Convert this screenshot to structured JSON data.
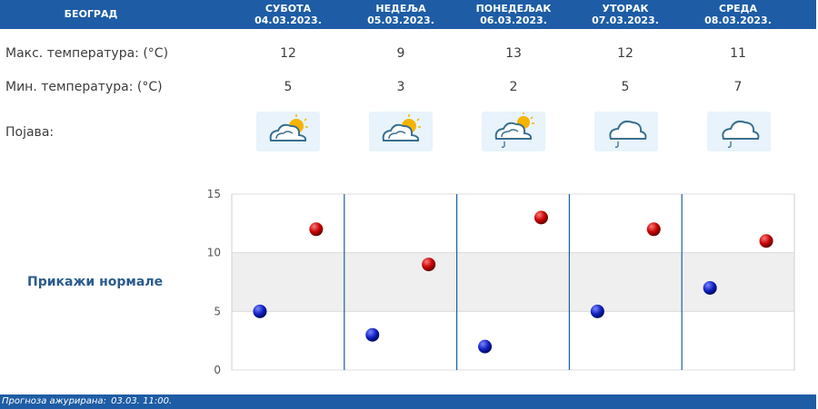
{
  "header": {
    "city": "БЕОГРАД"
  },
  "days": [
    {
      "name": "СУБОТА",
      "date": "04.03.2023.",
      "max": "12",
      "min": "5",
      "icon": "sun-behind-cloud-icon"
    },
    {
      "name": "НЕДЕЉА",
      "date": "05.03.2023.",
      "max": "9",
      "min": "3",
      "icon": "sun-behind-cloud-icon"
    },
    {
      "name": "ПОНЕДЕЉАК",
      "date": "06.03.2023.",
      "max": "13",
      "min": "2",
      "icon": "sun-cloud-rain-icon"
    },
    {
      "name": "УТОРАК",
      "date": "07.03.2023.",
      "max": "12",
      "min": "5",
      "icon": "cloud-rain-icon"
    },
    {
      "name": "СРЕДА",
      "date": "08.03.2023.",
      "max": "11",
      "min": "7",
      "icon": "cloud-rain-icon"
    }
  ],
  "labels": {
    "max": "Макс. температура: (°C)",
    "min": "Мин. температура: (°C)",
    "phenomenon": "Појава:"
  },
  "normals_link": "Прикажи нормале",
  "footer": {
    "label": "Прогноза ажурирана:",
    "value": "03.03. 11:00."
  },
  "colors": {
    "header": "#1e5da5",
    "max_dot": "#c40000",
    "min_dot": "#1020c0",
    "band": "#efefef",
    "divider": "#1e5da5"
  },
  "chart_data": {
    "type": "scatter",
    "categories": [
      "04.03.2023.",
      "05.03.2023.",
      "06.03.2023.",
      "07.03.2023.",
      "08.03.2023."
    ],
    "series": [
      {
        "values": [
          5,
          3,
          2,
          5,
          7
        ]
      },
      {
        "values": [
          12,
          9,
          13,
          12,
          11
        ]
      }
    ],
    "yticks": [
      "0",
      "5",
      "10",
      "15"
    ],
    "ylim": [
      0,
      15
    ],
    "grid": true
  }
}
